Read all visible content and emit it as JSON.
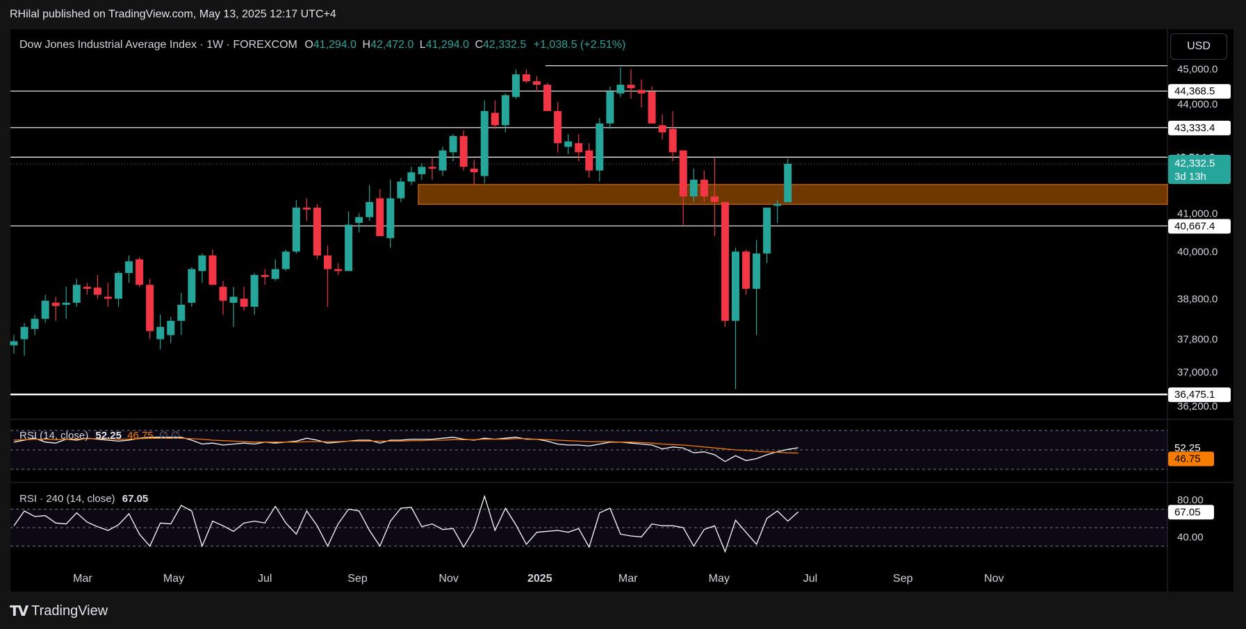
{
  "header": {
    "publisher_line": "RHilal published on TradingView.com, May 13, 2025 12:17 UTC+4"
  },
  "chart_title": {
    "symbol": "Dow Jones Industrial Average Index · 1W · FOREXCOM",
    "o_label": "O",
    "o_value": "41,294.0",
    "h_label": "H",
    "h_value": "42,472.0",
    "l_label": "L",
    "l_value": "41,294.0",
    "c_label": "C",
    "c_value": "42,332.5",
    "change": "+1,038.5 (+2.51%)"
  },
  "currency_button": "USD",
  "colors": {
    "up": "#26a69a",
    "down": "#f23645",
    "zone": "#f57c00",
    "rsi_ma": "#f57c00",
    "line": "#ffffff"
  },
  "chart_data": {
    "type": "candlestick",
    "timeframe": "1W",
    "y_scale": {
      "type": "log",
      "ylim": [
        36200,
        45500
      ]
    },
    "y_ticks": [
      "45,000.0",
      "44,000.0",
      "41,000.0",
      "40,000.0",
      "38,800.0",
      "37,800.0",
      "37,000.0",
      "36,200.0"
    ],
    "y_tick_values": [
      45000,
      44000,
      41000,
      40000,
      38800,
      37800,
      37000,
      36200
    ],
    "x_ticks": [
      "Mar",
      "May",
      "Jul",
      "Sep",
      "Nov",
      "2025",
      "Mar",
      "May",
      "Jul",
      "Sep",
      "Nov"
    ],
    "x_tick_dates": [
      "2024-03-01",
      "2024-05-01",
      "2024-07-01",
      "2024-09-01",
      "2024-11-01",
      "2025-01-01",
      "2025-03-01",
      "2025-05-01",
      "2025-07-01",
      "2025-09-01",
      "2025-11-01"
    ],
    "first_week": "2024-01-15",
    "candles": [
      {
        "o": 37650,
        "h": 37900,
        "l": 37450,
        "c": 37750
      },
      {
        "o": 37800,
        "h": 38200,
        "l": 37400,
        "c": 38100
      },
      {
        "o": 38050,
        "h": 38400,
        "l": 37900,
        "c": 38300
      },
      {
        "o": 38300,
        "h": 38900,
        "l": 38200,
        "c": 38750
      },
      {
        "o": 38700,
        "h": 38850,
        "l": 38250,
        "c": 38620
      },
      {
        "o": 38650,
        "h": 39100,
        "l": 38300,
        "c": 38700
      },
      {
        "o": 38700,
        "h": 39300,
        "l": 38600,
        "c": 39150
      },
      {
        "o": 39100,
        "h": 39200,
        "l": 38900,
        "c": 39050
      },
      {
        "o": 39080,
        "h": 39400,
        "l": 38800,
        "c": 38900
      },
      {
        "o": 38850,
        "h": 39200,
        "l": 38600,
        "c": 38800
      },
      {
        "o": 38800,
        "h": 39500,
        "l": 38600,
        "c": 39450
      },
      {
        "o": 39450,
        "h": 39900,
        "l": 39200,
        "c": 39750
      },
      {
        "o": 39800,
        "h": 39850,
        "l": 39100,
        "c": 39150
      },
      {
        "o": 39150,
        "h": 39300,
        "l": 37800,
        "c": 38000
      },
      {
        "o": 37800,
        "h": 38400,
        "l": 37550,
        "c": 38100
      },
      {
        "o": 37900,
        "h": 38350,
        "l": 37700,
        "c": 38250
      },
      {
        "o": 38250,
        "h": 38950,
        "l": 37900,
        "c": 38650
      },
      {
        "o": 38700,
        "h": 39600,
        "l": 38600,
        "c": 39550
      },
      {
        "o": 39500,
        "h": 39950,
        "l": 39200,
        "c": 39900
      },
      {
        "o": 39900,
        "h": 40050,
        "l": 39150,
        "c": 39150
      },
      {
        "o": 39100,
        "h": 39250,
        "l": 38400,
        "c": 38750
      },
      {
        "o": 38700,
        "h": 39100,
        "l": 38100,
        "c": 38850
      },
      {
        "o": 38800,
        "h": 39100,
        "l": 38500,
        "c": 38600
      },
      {
        "o": 38600,
        "h": 39450,
        "l": 38400,
        "c": 39400
      },
      {
        "o": 39400,
        "h": 39550,
        "l": 39150,
        "c": 39350
      },
      {
        "o": 39300,
        "h": 39800,
        "l": 39250,
        "c": 39550
      },
      {
        "o": 39550,
        "h": 40050,
        "l": 39500,
        "c": 40000
      },
      {
        "o": 40000,
        "h": 41350,
        "l": 39950,
        "c": 41150
      },
      {
        "o": 41150,
        "h": 41400,
        "l": 40800,
        "c": 41100
      },
      {
        "o": 41150,
        "h": 41250,
        "l": 39800,
        "c": 39900
      },
      {
        "o": 39900,
        "h": 40150,
        "l": 38600,
        "c": 39550
      },
      {
        "o": 39550,
        "h": 39700,
        "l": 39400,
        "c": 39500
      },
      {
        "o": 39500,
        "h": 41050,
        "l": 39500,
        "c": 40700
      },
      {
        "o": 40750,
        "h": 41000,
        "l": 40500,
        "c": 40900
      },
      {
        "o": 40900,
        "h": 41750,
        "l": 40800,
        "c": 41300
      },
      {
        "o": 41400,
        "h": 41650,
        "l": 40400,
        "c": 40400
      },
      {
        "o": 40350,
        "h": 41900,
        "l": 40100,
        "c": 41400
      },
      {
        "o": 41400,
        "h": 41950,
        "l": 41300,
        "c": 41850
      },
      {
        "o": 41850,
        "h": 42250,
        "l": 41750,
        "c": 42100
      },
      {
        "o": 42050,
        "h": 42350,
        "l": 41900,
        "c": 42250
      },
      {
        "o": 42250,
        "h": 42500,
        "l": 41900,
        "c": 42200
      },
      {
        "o": 42150,
        "h": 42800,
        "l": 42000,
        "c": 42700
      },
      {
        "o": 42650,
        "h": 43150,
        "l": 42400,
        "c": 43100
      },
      {
        "o": 43100,
        "h": 43250,
        "l": 42150,
        "c": 42250
      },
      {
        "o": 42200,
        "h": 42450,
        "l": 41750,
        "c": 42100
      },
      {
        "o": 42000,
        "h": 44100,
        "l": 41800,
        "c": 43800
      },
      {
        "o": 43750,
        "h": 44100,
        "l": 43300,
        "c": 43400
      },
      {
        "o": 43400,
        "h": 44300,
        "l": 43200,
        "c": 44250
      },
      {
        "o": 44200,
        "h": 45000,
        "l": 44150,
        "c": 44850
      },
      {
        "o": 44850,
        "h": 45000,
        "l": 44600,
        "c": 44650
      },
      {
        "o": 44650,
        "h": 44800,
        "l": 44350,
        "c": 44550
      },
      {
        "o": 44550,
        "h": 44600,
        "l": 43800,
        "c": 43800
      },
      {
        "o": 43800,
        "h": 44050,
        "l": 42650,
        "c": 42900
      },
      {
        "o": 42800,
        "h": 43150,
        "l": 42600,
        "c": 42950
      },
      {
        "o": 42900,
        "h": 43150,
        "l": 42400,
        "c": 42650
      },
      {
        "o": 42700,
        "h": 42900,
        "l": 41950,
        "c": 42150
      },
      {
        "o": 42150,
        "h": 43600,
        "l": 41850,
        "c": 43450
      },
      {
        "o": 43450,
        "h": 44500,
        "l": 43300,
        "c": 44350
      },
      {
        "o": 44300,
        "h": 45050,
        "l": 44200,
        "c": 44550
      },
      {
        "o": 44550,
        "h": 45000,
        "l": 44150,
        "c": 44450
      },
      {
        "o": 44400,
        "h": 44700,
        "l": 43900,
        "c": 44300
      },
      {
        "o": 44350,
        "h": 44500,
        "l": 43500,
        "c": 43450
      },
      {
        "o": 43400,
        "h": 43700,
        "l": 43000,
        "c": 43200
      },
      {
        "o": 43300,
        "h": 43800,
        "l": 42400,
        "c": 42650
      },
      {
        "o": 42700,
        "h": 42700,
        "l": 40700,
        "c": 41450
      },
      {
        "o": 41450,
        "h": 42200,
        "l": 41300,
        "c": 41900
      },
      {
        "o": 41900,
        "h": 42150,
        "l": 41300,
        "c": 41450
      },
      {
        "o": 41450,
        "h": 42500,
        "l": 40400,
        "c": 41300
      },
      {
        "o": 41300,
        "h": 41300,
        "l": 38100,
        "c": 38250
      },
      {
        "o": 38250,
        "h": 40100,
        "l": 36600,
        "c": 40000
      },
      {
        "o": 40000,
        "h": 40050,
        "l": 38900,
        "c": 39050
      },
      {
        "o": 39050,
        "h": 40300,
        "l": 37900,
        "c": 39950
      },
      {
        "o": 39950,
        "h": 41150,
        "l": 39700,
        "c": 41150
      },
      {
        "o": 41200,
        "h": 41350,
        "l": 40750,
        "c": 41250
      },
      {
        "o": 41294,
        "h": 42472,
        "l": 41294,
        "c": 42332.5
      }
    ],
    "horizontal_levels": [
      45100,
      44368.5,
      43333.4,
      42514.3,
      40667.4,
      36475.1
    ],
    "zone": {
      "low": 41240,
      "high": 41770
    },
    "price_labels": [
      {
        "text": "45,000.0",
        "value": 45000,
        "style": "tick"
      },
      {
        "text": "44,368.5",
        "value": 44368.5,
        "style": "white"
      },
      {
        "text": "44,000.0",
        "value": 44000,
        "style": "tick"
      },
      {
        "text": "43,333.4",
        "value": 43333.4,
        "style": "white"
      },
      {
        "text": "42,514.3",
        "value": 42514.3,
        "style": "black"
      },
      {
        "text": "42,332.5",
        "value": 42332.5,
        "style": "green",
        "sub": "3d 13h"
      },
      {
        "text": "41,000.0",
        "value": 41000,
        "style": "tick"
      },
      {
        "text": "40,667.4",
        "value": 40667.4,
        "style": "white"
      },
      {
        "text": "40,000.0",
        "value": 40000,
        "style": "tick"
      },
      {
        "text": "38,800.0",
        "value": 38800,
        "style": "tick"
      },
      {
        "text": "37,800.0",
        "value": 37800,
        "style": "tick"
      },
      {
        "text": "37,000.0",
        "value": 37000,
        "style": "tick"
      },
      {
        "text": "36,475.1",
        "value": 36475.1,
        "style": "white"
      },
      {
        "text": "36,200.0",
        "value": 36200,
        "style": "tick"
      }
    ],
    "rsi": {
      "label": "RSI (14, close)",
      "value": "52.25",
      "ma_value": "46.75",
      "extra": "∅ ∅",
      "value_num": 52.25,
      "ma_num": 46.75,
      "ylim": [
        20,
        80
      ],
      "values": [
        58,
        60,
        62,
        58,
        57,
        61,
        60,
        62,
        61,
        60,
        59,
        60,
        62,
        63,
        63,
        63,
        63,
        60,
        56,
        57,
        55,
        56,
        57,
        56,
        58,
        57,
        58,
        59,
        62,
        60,
        57,
        58,
        59,
        60,
        60,
        57,
        60,
        60,
        61,
        61,
        61,
        62,
        63,
        61,
        60,
        62,
        61,
        62,
        63,
        61,
        61,
        59,
        56,
        55,
        55,
        54,
        56,
        58,
        58,
        57,
        56,
        55,
        51,
        53,
        52,
        47,
        48,
        45,
        38,
        44,
        39,
        41,
        45,
        48,
        50.5,
        52.25
      ],
      "ma": [
        60,
        60.5,
        61,
        61,
        60.5,
        61,
        61,
        61.5,
        61.5,
        61.5,
        61,
        61,
        61.5,
        62,
        62,
        62,
        62,
        61.5,
        61,
        60,
        59.5,
        59,
        58.5,
        58,
        58,
        58,
        58,
        58,
        58.5,
        58.5,
        58.5,
        58.5,
        59,
        59,
        59,
        59,
        59,
        59,
        59.5,
        59.5,
        60,
        60,
        60.5,
        60.5,
        60.5,
        61,
        61,
        61,
        61.5,
        61.5,
        61,
        60.5,
        60,
        59.5,
        59,
        58.5,
        58.5,
        58.5,
        58,
        58,
        57.5,
        57,
        56,
        55.5,
        55,
        54,
        53,
        52,
        51,
        50,
        49.5,
        48.5,
        48,
        47.5,
        47,
        46.75
      ]
    },
    "rsi240": {
      "label": "RSI · 240 (14, close)",
      "value": "67.05",
      "value_num": 67.05,
      "ylim": [
        20,
        95
      ],
      "y_ticks": [
        "80.00",
        "40.00"
      ],
      "y_tick_values": [
        80,
        40
      ],
      "values": [
        52,
        68,
        62,
        63,
        55,
        54,
        66,
        56,
        51,
        47,
        53,
        65,
        43,
        30,
        55,
        54,
        74,
        68,
        30,
        57,
        52,
        46,
        55,
        57,
        55,
        73,
        55,
        43,
        68,
        52,
        30,
        54,
        70,
        68,
        47,
        30,
        57,
        71,
        72,
        51,
        54,
        48,
        49,
        29,
        48,
        84,
        47,
        71,
        53,
        32,
        45,
        46,
        47,
        45,
        49,
        29,
        66,
        71,
        43,
        41,
        40,
        54,
        52,
        52,
        50,
        30,
        48,
        52,
        24,
        58,
        45,
        32,
        60,
        68,
        57,
        67.05
      ]
    }
  },
  "footer": {
    "brand": "TradingView"
  }
}
